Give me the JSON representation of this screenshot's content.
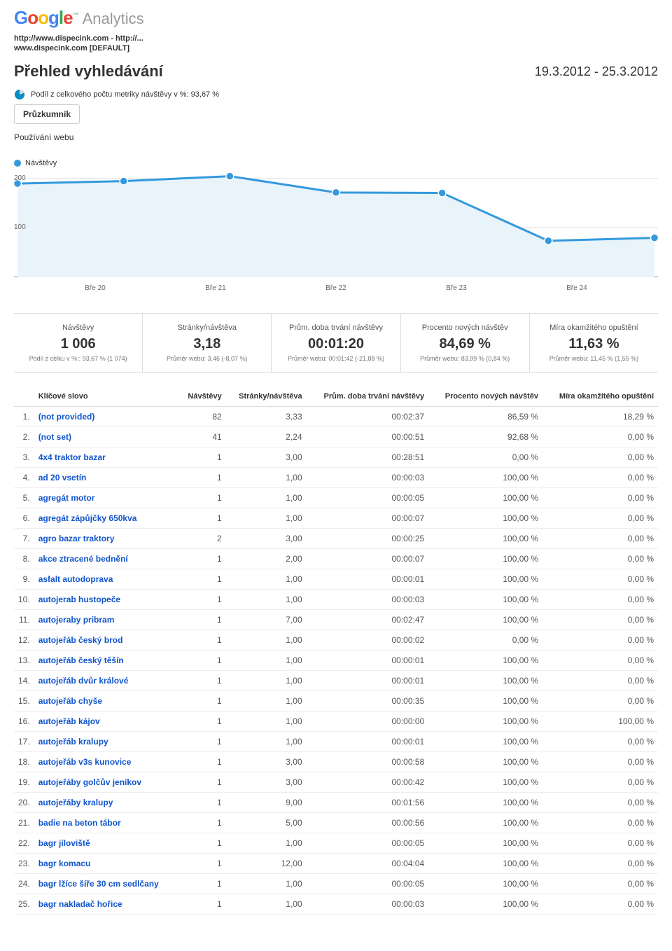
{
  "logo": {
    "google": "Google",
    "tm": "™",
    "analytics": "Analytics"
  },
  "site": {
    "line1": "http://www.dispecink.com - http://...",
    "line2": "www.dispecink.com [DEFAULT]"
  },
  "page_title": "Přehled vyhledávání",
  "date_range": "19.3.2012 - 25.3.2012",
  "pie_text": "Podíl z celkového počtu metriky návštěvy v %: 93,67 %",
  "tab": "Průzkumník",
  "sub_tab": "Používání webu",
  "chart": {
    "legend_label": "Návštěvy",
    "legend_color": "#3399dd",
    "y_ticks": [
      "200",
      "100"
    ],
    "x_labels": [
      "Bře 20",
      "Bře 21",
      "Bře 22",
      "Bře 23",
      "Bře 24"
    ],
    "fill": "#e9f3fa",
    "line_color": "#3399dd",
    "point_color": "#3399dd",
    "points_y": [
      190,
      195,
      205,
      172,
      171,
      74,
      80
    ],
    "ymax": 220
  },
  "metrics": [
    {
      "label": "Návštěvy",
      "value": "1 006",
      "sub": "Podíl z celku v %:: 93,67 % (1 074)"
    },
    {
      "label": "Stránky/návštěva",
      "value": "3,18",
      "sub": "Průměr webu: 3,46 (-8,07 %)"
    },
    {
      "label": "Prům. doba trvání návštěvy",
      "value": "00:01:20",
      "sub": "Průměr webu: 00:01:42 (-21,88 %)"
    },
    {
      "label": "Procento nových návštěv",
      "value": "84,69 %",
      "sub": "Průměr webu: 83,99 % (0,84 %)"
    },
    {
      "label": "Míra okamžitého opuštění",
      "value": "11,63 %",
      "sub": "Průměr webu: 11,45 % (1,55 %)"
    }
  ],
  "table": {
    "headers": [
      "Klíčové slovo",
      "Návštěvy",
      "Stránky/návštěva",
      "Prům. doba trvání návštěvy",
      "Procento nových návštěv",
      "Míra okamžitého opuštění"
    ],
    "rows": [
      [
        "1.",
        "(not provided)",
        "82",
        "3,33",
        "00:02:37",
        "86,59 %",
        "18,29 %"
      ],
      [
        "2.",
        "(not set)",
        "41",
        "2,24",
        "00:00:51",
        "92,68 %",
        "0,00 %"
      ],
      [
        "3.",
        "4x4 traktor bazar",
        "1",
        "3,00",
        "00:28:51",
        "0,00 %",
        "0,00 %"
      ],
      [
        "4.",
        "ad 20 vsetín",
        "1",
        "1,00",
        "00:00:03",
        "100,00 %",
        "0,00 %"
      ],
      [
        "5.",
        "agregát motor",
        "1",
        "1,00",
        "00:00:05",
        "100,00 %",
        "0,00 %"
      ],
      [
        "6.",
        "agregát zápůjčky 650kva",
        "1",
        "1,00",
        "00:00:07",
        "100,00 %",
        "0,00 %"
      ],
      [
        "7.",
        "agro bazar traktory",
        "2",
        "3,00",
        "00:00:25",
        "100,00 %",
        "0,00 %"
      ],
      [
        "8.",
        "akce ztracené bednění",
        "1",
        "2,00",
        "00:00:07",
        "100,00 %",
        "0,00 %"
      ],
      [
        "9.",
        "asfalt autodoprava",
        "1",
        "1,00",
        "00:00:01",
        "100,00 %",
        "0,00 %"
      ],
      [
        "10.",
        "autojerab hustopeče",
        "1",
        "1,00",
        "00:00:03",
        "100,00 %",
        "0,00 %"
      ],
      [
        "11.",
        "autojeraby pribram",
        "1",
        "7,00",
        "00:02:47",
        "100,00 %",
        "0,00 %"
      ],
      [
        "12.",
        "autojeřáb český brod",
        "1",
        "1,00",
        "00:00:02",
        "0,00 %",
        "0,00 %"
      ],
      [
        "13.",
        "autojeřáb český těšín",
        "1",
        "1,00",
        "00:00:01",
        "100,00 %",
        "0,00 %"
      ],
      [
        "14.",
        "autojeřáb dvůr králové",
        "1",
        "1,00",
        "00:00:01",
        "100,00 %",
        "0,00 %"
      ],
      [
        "15.",
        "autojeřáb chyše",
        "1",
        "1,00",
        "00:00:35",
        "100,00 %",
        "0,00 %"
      ],
      [
        "16.",
        "autojeřáb kájov",
        "1",
        "1,00",
        "00:00:00",
        "100,00 %",
        "100,00 %"
      ],
      [
        "17.",
        "autojeřáb kralupy",
        "1",
        "1,00",
        "00:00:01",
        "100,00 %",
        "0,00 %"
      ],
      [
        "18.",
        "autojeřáb v3s kunovice",
        "1",
        "3,00",
        "00:00:58",
        "100,00 %",
        "0,00 %"
      ],
      [
        "19.",
        "autojeřáby golčův jeníkov",
        "1",
        "3,00",
        "00:00:42",
        "100,00 %",
        "0,00 %"
      ],
      [
        "20.",
        "autojeřáby kralupy",
        "1",
        "9,00",
        "00:01:56",
        "100,00 %",
        "0,00 %"
      ],
      [
        "21.",
        "badie na beton tábor",
        "1",
        "5,00",
        "00:00:56",
        "100,00 %",
        "0,00 %"
      ],
      [
        "22.",
        "bagr jíloviště",
        "1",
        "1,00",
        "00:00:05",
        "100,00 %",
        "0,00 %"
      ],
      [
        "23.",
        "bagr komacu",
        "1",
        "12,00",
        "00:04:04",
        "100,00 %",
        "0,00 %"
      ],
      [
        "24.",
        "bagr lžíce šíře 30 cm sedlčany",
        "1",
        "1,00",
        "00:00:05",
        "100,00 %",
        "0,00 %"
      ],
      [
        "25.",
        "bagr nakladač hořice",
        "1",
        "1,00",
        "00:00:03",
        "100,00 %",
        "0,00 %"
      ]
    ]
  }
}
